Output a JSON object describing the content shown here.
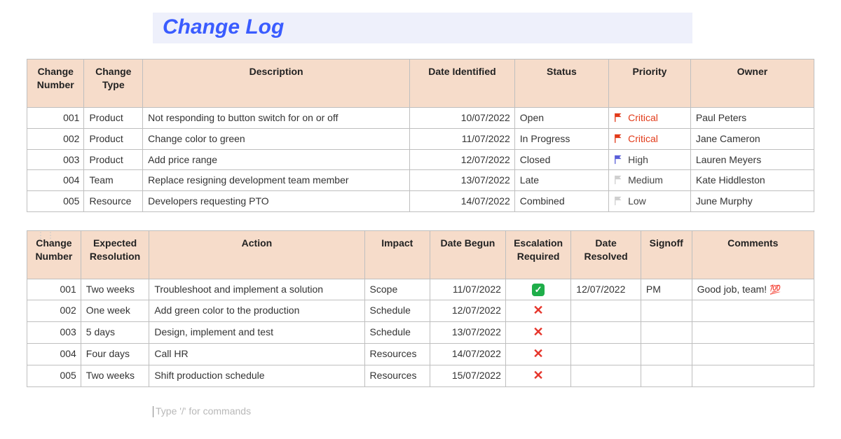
{
  "title": "Change Log",
  "colors": {
    "title_text": "#3a5cff",
    "title_bg": "#eef0fb",
    "header_bg": "#f6dcca",
    "border": "#bfbfbf",
    "flag_critical": "#e23b1a",
    "flag_high": "#5a5fd8",
    "flag_medium": "#cfcfcf",
    "flag_low": "#cfcfcf",
    "check_bg": "#1fae4a",
    "cross": "#e6352b",
    "hint_text": "#b8b8b8"
  },
  "table1": {
    "columns": [
      "Change Number",
      "Change Type",
      "Description",
      "Date Identified",
      "Status",
      "Priority",
      "Owner"
    ],
    "rows": [
      {
        "num": "001",
        "type": "Product",
        "desc": "Not responding to button switch for on or off",
        "date": "10/07/2022",
        "status": "Open",
        "priority": "Critical",
        "owner": "Paul Peters"
      },
      {
        "num": "002",
        "type": "Product",
        "desc": "Change color to green",
        "date": "11/07/2022",
        "status": "In Progress",
        "priority": "Critical",
        "owner": "Jane Cameron"
      },
      {
        "num": "003",
        "type": "Product",
        "desc": "Add price range",
        "date": "12/07/2022",
        "status": "Closed",
        "priority": "High",
        "owner": "Lauren Meyers"
      },
      {
        "num": "004",
        "type": "Team",
        "desc": "Replace resigning development team member",
        "date": "13/07/2022",
        "status": "Late",
        "priority": "Medium",
        "owner": "Kate Hiddleston"
      },
      {
        "num": "005",
        "type": "Resource",
        "desc": "Developers requesting PTO",
        "date": "14/07/2022",
        "status": "Combined",
        "priority": "Low",
        "owner": "June Murphy"
      }
    ]
  },
  "table2": {
    "columns": [
      "Change Number",
      "Expected Resolution",
      "Action",
      "Impact",
      "Date  Begun",
      "Escalation Required",
      "Date Resolved",
      "Signoff",
      "Comments"
    ],
    "rows": [
      {
        "num": "001",
        "exp": "Two weeks",
        "action": "Troubleshoot and implement a solution",
        "impact": "Scope",
        "begun": "11/07/2022",
        "escalation": true,
        "resolved": "12/07/2022",
        "signoff": "PM",
        "comments": "Good job, team! ",
        "comments_emoji": "100"
      },
      {
        "num": "002",
        "exp": "One week",
        "action": "Add green color to the production",
        "impact": "Schedule",
        "begun": "12/07/2022",
        "escalation": false,
        "resolved": "",
        "signoff": "",
        "comments": "",
        "comments_emoji": ""
      },
      {
        "num": "003",
        "exp": "5 days",
        "action": "Design, implement and test",
        "impact": "Schedule",
        "begun": "13/07/2022",
        "escalation": false,
        "resolved": "",
        "signoff": "",
        "comments": "",
        "comments_emoji": ""
      },
      {
        "num": "004",
        "exp": "Four days",
        "action": "Call HR",
        "impact": "Resources",
        "begun": "14/07/2022",
        "escalation": false,
        "resolved": "",
        "signoff": "",
        "comments": "",
        "comments_emoji": ""
      },
      {
        "num": "005",
        "exp": "Two weeks",
        "action": "Shift production schedule",
        "impact": "Resources",
        "begun": "15/07/2022",
        "escalation": false,
        "resolved": "",
        "signoff": "",
        "comments": "",
        "comments_emoji": ""
      }
    ]
  },
  "priority_styles": {
    "Critical": {
      "fill": "#e23b1a",
      "text_class": "prio-text-critical"
    },
    "High": {
      "fill": "#5a5fd8",
      "text_class": "prio-text-other"
    },
    "Medium": {
      "fill": "#cfcfcf",
      "text_class": "prio-text-other"
    },
    "Low": {
      "fill": "#cfcfcf",
      "text_class": "prio-text-other"
    }
  },
  "commands_hint": "Type '/' for commands"
}
